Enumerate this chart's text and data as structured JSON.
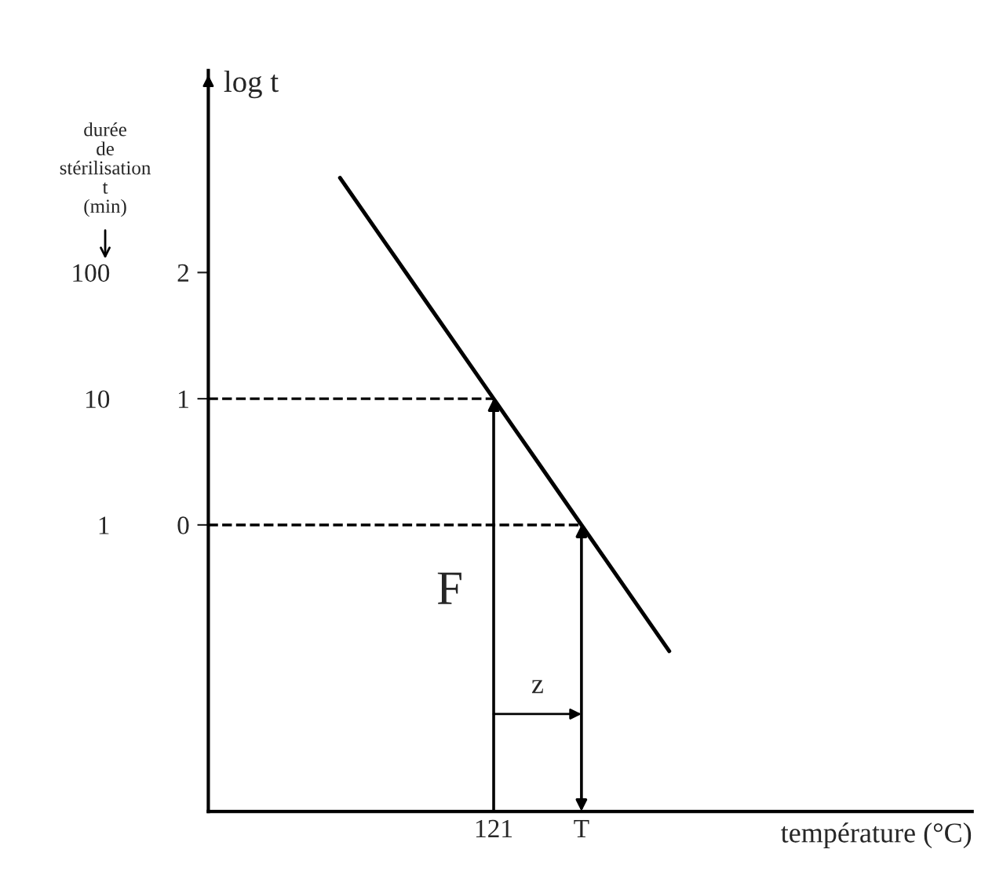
{
  "chart_data": {
    "type": "line",
    "ylabel": "log t",
    "xlabel": "température (°C)",
    "y2label": "durée de stérilisation t (min)",
    "categories": [
      null,
      null,
      null,
      null,
      null,
      null,
      null,
      null,
      null,
      null,
      null,
      null,
      null,
      "121",
      null,
      null,
      null,
      "T",
      null,
      null,
      null,
      null,
      null,
      null,
      null,
      null,
      null,
      null,
      null,
      null,
      null,
      null,
      null,
      null,
      null
    ],
    "ylim": [
      -2.27,
      3.6
    ],
    "yticks": [
      0,
      1,
      2
    ],
    "y2lim": [
      0.00537,
      3981
    ],
    "y2ticks": [
      1,
      10,
      100
    ],
    "log": "y2",
    "grid": false,
    "marker": "none",
    "series": [
      {
        "values": [
          null,
          null,
          null,
          null,
          null,
          null,
          2.75,
          2.5,
          2.25,
          2.0,
          1.75,
          1.5,
          1.25,
          1.0,
          0.75,
          0.5,
          0.25,
          0.0,
          -0.25,
          -0.5,
          -0.75,
          -1.0,
          null,
          null,
          null,
          null,
          null,
          null,
          null,
          null,
          null,
          null,
          null,
          null,
          null
        ],
        "color": "#000000",
        "line_style": "solid"
      },
      {
        "values": [
          1,
          1,
          1,
          1,
          1,
          1,
          1,
          1,
          1,
          1,
          1,
          1,
          1,
          1,
          null,
          null,
          null,
          null,
          null,
          null,
          null,
          null,
          null,
          null,
          null,
          null,
          null,
          null,
          null,
          null,
          null,
          null,
          null,
          null,
          null
        ],
        "color": "#000000",
        "line_style": "dashed"
      },
      {
        "values": [
          0,
          0,
          0,
          0,
          0,
          0,
          0,
          0,
          0,
          0,
          0,
          0,
          0,
          0,
          0,
          0,
          0,
          0,
          null,
          null,
          null,
          null,
          null,
          null,
          null,
          null,
          null,
          null,
          null,
          null,
          null,
          null,
          null,
          null,
          null
        ],
        "color": "#000000",
        "line_style": "dashed"
      }
    ],
    "annotations": [
      "F",
      "z"
    ]
  }
}
